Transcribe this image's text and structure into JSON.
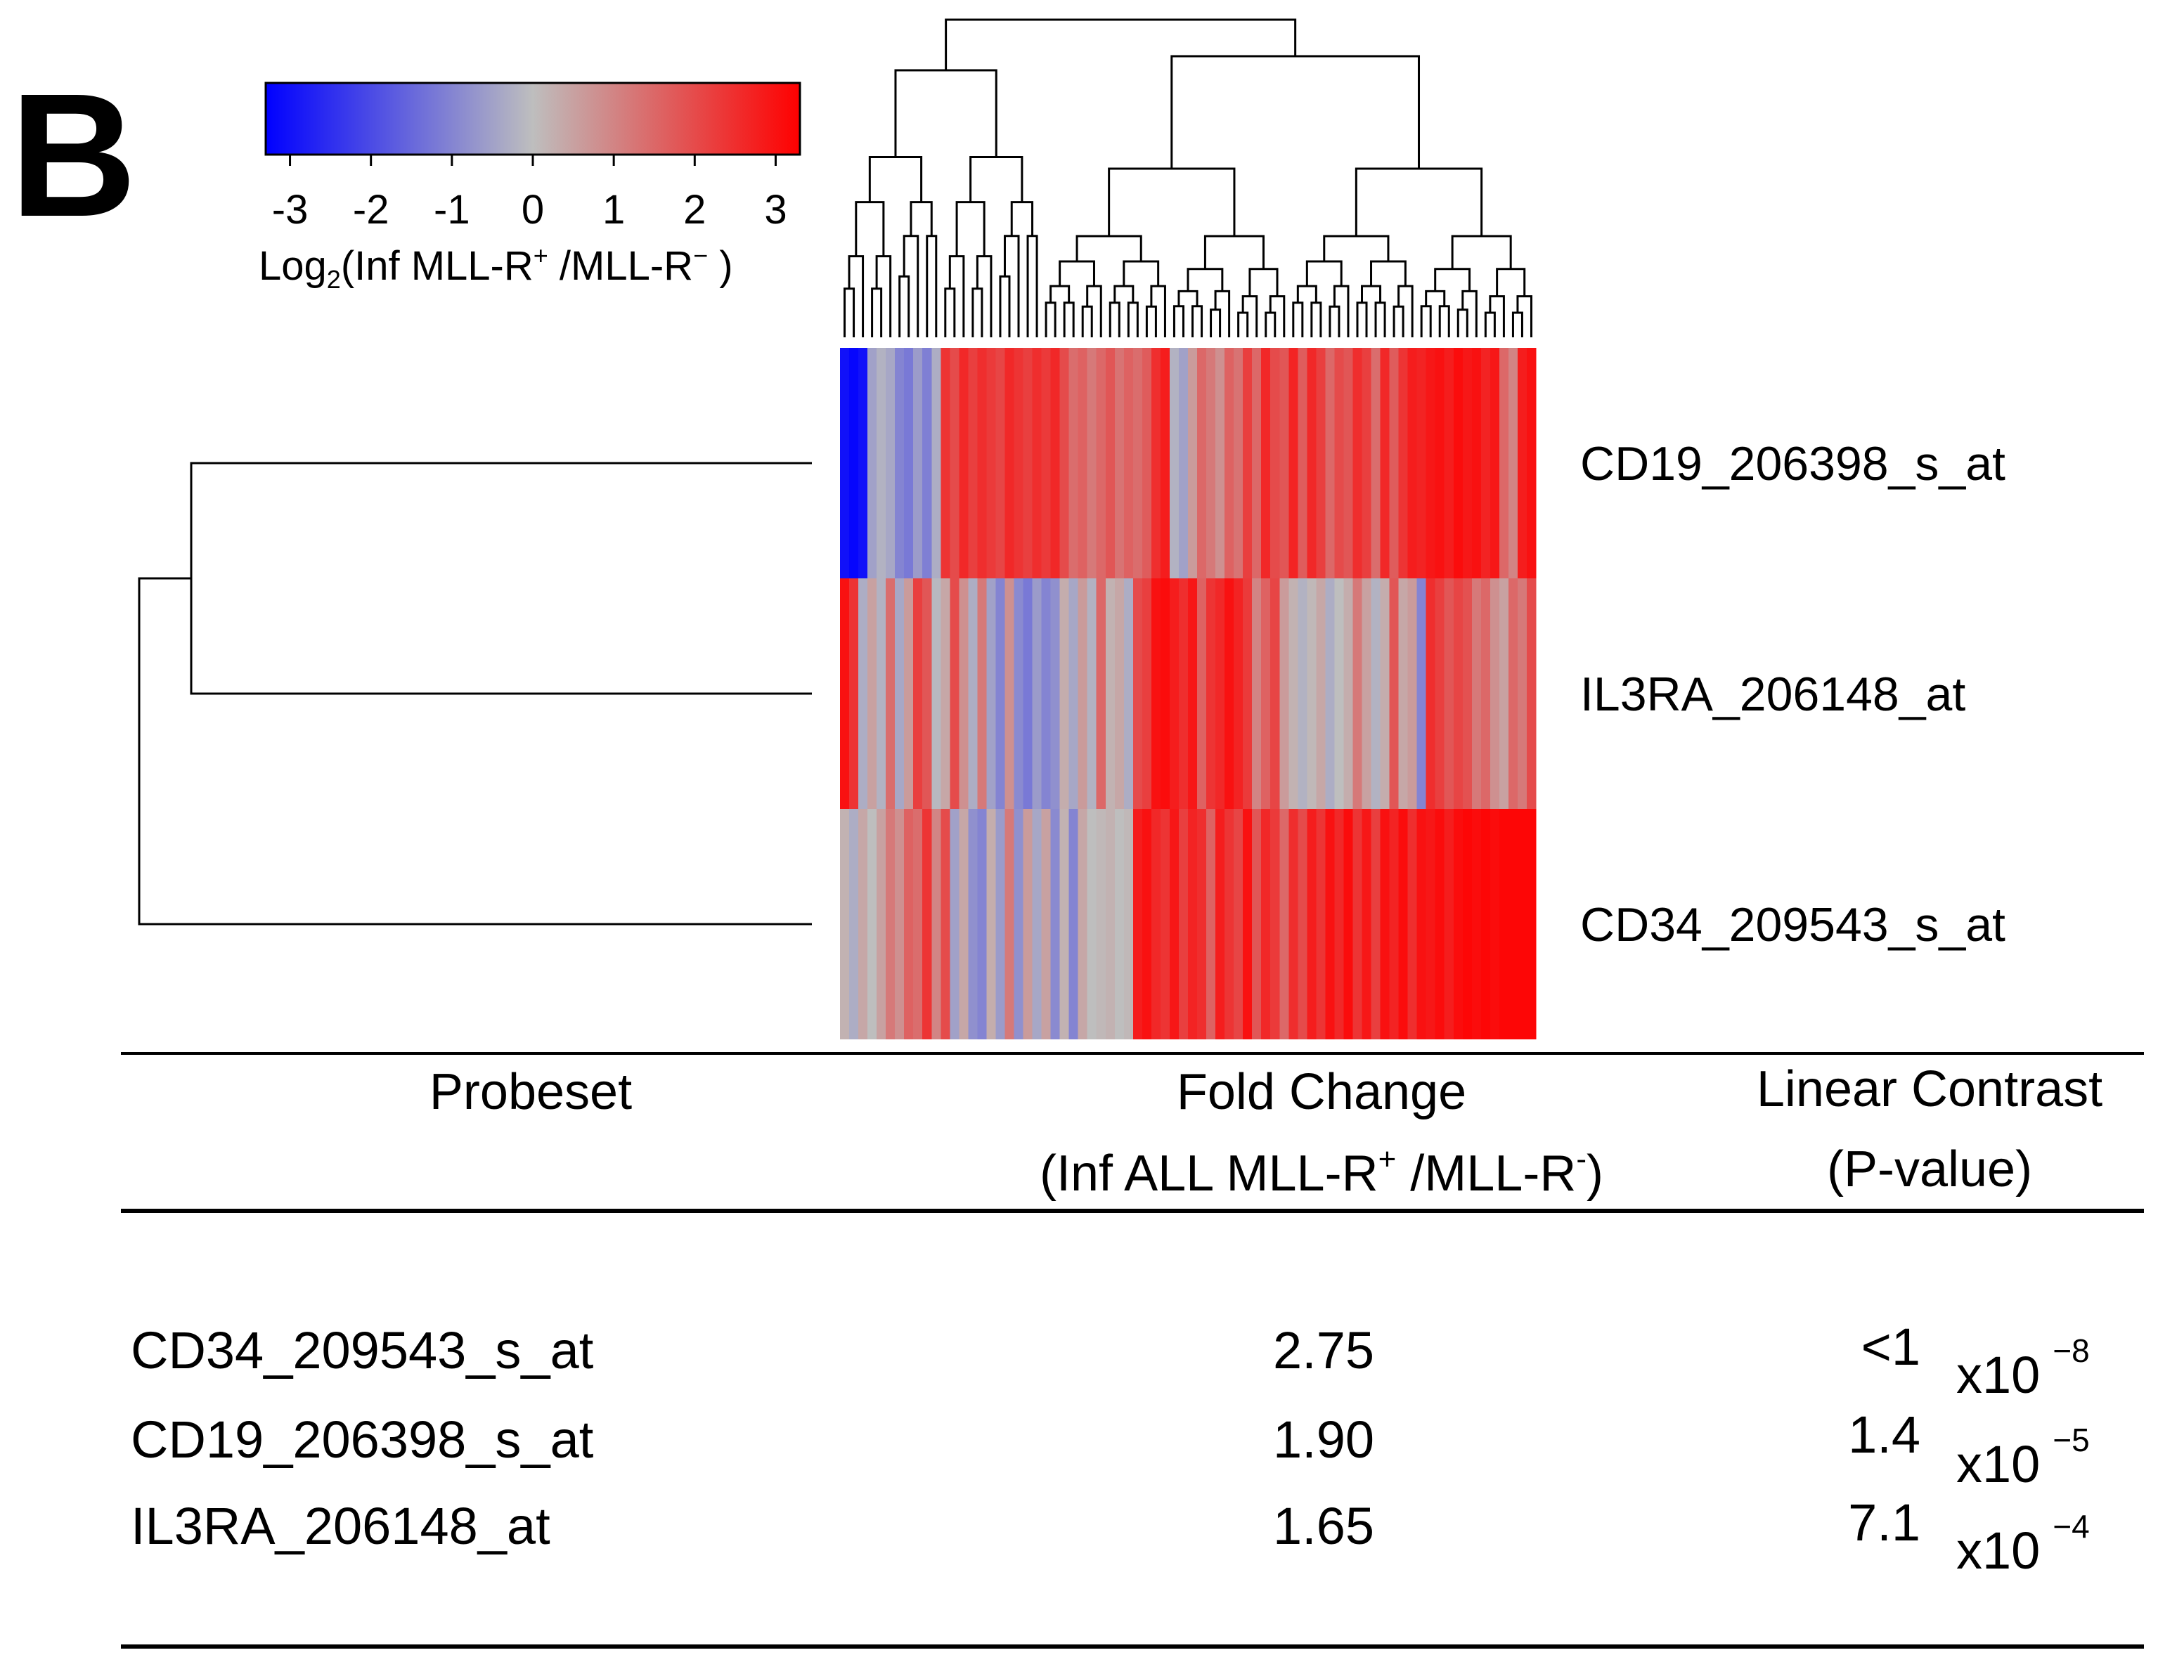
{
  "panel_label": "B",
  "colors": {
    "low": "#0000ff",
    "mid": "#bebebe",
    "high": "#ff0000",
    "line": "#000000"
  },
  "chart_data": {
    "type": "heatmap",
    "colorbar": {
      "ticks": [
        "-3",
        "-2",
        "-1",
        "0",
        "1",
        "2",
        "3"
      ],
      "range": [
        -3.3,
        3.3
      ],
      "label_parts": {
        "pre": "Log",
        "sub": "2",
        "mid": "(Inf MLL-R",
        "sup1": "+",
        "mid2": " /MLL-R",
        "sup2": "−",
        "post": " )"
      }
    },
    "rows": [
      "CD19_206398_s_at",
      "IL3RA_206148_at",
      "CD34_209543_s_at"
    ],
    "values": [
      [
        -3.0,
        -3.2,
        -3.0,
        -0.5,
        -0.2,
        -0.4,
        -1.0,
        -1.2,
        -0.6,
        -1.1,
        -0.3,
        2.4,
        2.0,
        2.6,
        2.2,
        2.5,
        2.3,
        2.1,
        2.6,
        2.4,
        2.2,
        2.5,
        2.3,
        2.6,
        2.0,
        1.4,
        1.6,
        1.2,
        1.5,
        1.8,
        1.3,
        1.6,
        1.4,
        1.7,
        2.5,
        2.8,
        -0.2,
        -0.5,
        0.6,
        1.5,
        1.2,
        0.8,
        1.6,
        1.3,
        2.2,
        1.5,
        2.6,
        2.0,
        1.8,
        2.7,
        1.7,
        2.6,
        2.2,
        1.5,
        2.0,
        1.8,
        2.5,
        2.2,
        1.4,
        2.6,
        1.7,
        2.4,
        2.8,
        2.7,
        2.9,
        3.0,
        2.8,
        3.1,
        2.9,
        3.0,
        2.7,
        2.9,
        1.5,
        1.0,
        2.8,
        3.0
      ],
      [
        3.0,
        2.4,
        -0.3,
        0.5,
        -0.2,
        1.4,
        -0.4,
        0.6,
        2.2,
        1.8,
        -0.1,
        0.4,
        2.0,
        0.8,
        -0.3,
        1.2,
        -0.5,
        -1.0,
        0.8,
        -0.9,
        -1.2,
        -0.6,
        -1.0,
        -0.8,
        0.3,
        -0.4,
        0.6,
        -0.2,
        1.5,
        0.2,
        0.4,
        -0.3,
        2.0,
        2.2,
        3.0,
        3.1,
        2.8,
        2.5,
        2.9,
        1.6,
        2.4,
        2.6,
        3.0,
        2.7,
        2.3,
        1.0,
        1.6,
        2.1,
        0.6,
        0.2,
        -0.2,
        0.1,
        0.4,
        -0.3,
        0.0,
        0.3,
        1.2,
        0.5,
        -0.2,
        0.3,
        1.8,
        0.4,
        0.6,
        -1.0,
        2.5,
        2.2,
        1.8,
        2.1,
        1.9,
        1.2,
        1.5,
        0.8,
        0.5,
        1.5,
        1.2,
        2.0
      ],
      [
        0.2,
        -0.3,
        0.4,
        0.0,
        0.5,
        1.2,
        0.8,
        1.6,
        1.4,
        2.4,
        1.0,
        2.0,
        -0.5,
        0.4,
        -0.8,
        -1.0,
        0.3,
        -0.6,
        1.2,
        -0.8,
        0.6,
        -0.4,
        0.5,
        -0.9,
        0.2,
        -1.0,
        0.4,
        0.0,
        0.1,
        0.2,
        0.0,
        0.1,
        2.8,
        3.0,
        2.6,
        2.4,
        2.9,
        2.2,
        2.7,
        2.5,
        1.6,
        2.8,
        2.4,
        2.1,
        3.0,
        1.8,
        2.6,
        2.3,
        1.5,
        2.5,
        2.0,
        2.8,
        2.4,
        3.0,
        2.6,
        3.1,
        2.4,
        2.9,
        2.2,
        3.0,
        2.7,
        3.1,
        2.5,
        3.0,
        2.9,
        3.1,
        2.8,
        3.1,
        3.2,
        3.1,
        3.2,
        3.1,
        3.2,
        3.2,
        3.2,
        3.2
      ]
    ]
  },
  "table": {
    "headers": {
      "probeset": "Probeset",
      "fold_change": "Fold Change",
      "fold_change_sub": {
        "pre": "(Inf ALL MLL-R",
        "sup1": "+",
        "mid": " /MLL-R",
        "sup2": "-",
        "post": ")"
      },
      "linear_contrast": "Linear Contrast",
      "linear_contrast_sub": "(P-value)"
    },
    "rows": [
      {
        "probeset": "CD34_209543_s_at",
        "fold_change": "2.75",
        "p_mantissa": "<1",
        "p_base": "x10",
        "p_exp": "−8"
      },
      {
        "probeset": "CD19_206398_s_at",
        "fold_change": "1.90",
        "p_mantissa": "1.4",
        "p_base": "x10",
        "p_exp": "−5"
      },
      {
        "probeset": "IL3RA_206148_at",
        "fold_change": "1.65",
        "p_mantissa": "7.1",
        "p_base": "x10",
        "p_exp": "−4"
      }
    ]
  }
}
